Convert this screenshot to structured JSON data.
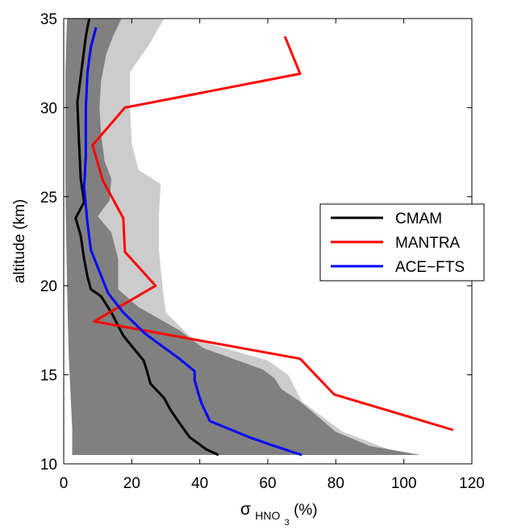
{
  "chart_data": {
    "type": "line",
    "title": "",
    "xlabel": "σ",
    "xlabel_subscript": "HNO",
    "xlabel_subsubscript": "3",
    "xlabel_unit": "(%)",
    "ylabel": "altitude (km)",
    "xlim": [
      0,
      120
    ],
    "ylim": [
      10,
      35
    ],
    "xticks": [
      0,
      20,
      40,
      60,
      80,
      100,
      120
    ],
    "yticks": [
      10,
      15,
      20,
      25,
      30,
      35
    ],
    "grid": false,
    "legend_position": "right",
    "series": [
      {
        "name": "CMAM",
        "color": "#000000",
        "points": [
          [
            45.5,
            10.5
          ],
          [
            42,
            10.8
          ],
          [
            37,
            11.5
          ],
          [
            34,
            12.3
          ],
          [
            31.5,
            13.0
          ],
          [
            29.5,
            13.7
          ],
          [
            25.5,
            14.5
          ],
          [
            24.5,
            15.2
          ],
          [
            23.5,
            15.8
          ],
          [
            20.5,
            16.5
          ],
          [
            17.5,
            17.2
          ],
          [
            14,
            18.5
          ],
          [
            11,
            19.4
          ],
          [
            8,
            19.8
          ],
          [
            7,
            20.5
          ],
          [
            6,
            21.5
          ],
          [
            5,
            22.8
          ],
          [
            3.5,
            23.8
          ],
          [
            6,
            24.7
          ],
          [
            5,
            26.0
          ],
          [
            4.5,
            28.0
          ],
          [
            4,
            30.3
          ],
          [
            5.5,
            32.5
          ],
          [
            6.5,
            34.0
          ],
          [
            7.5,
            35.0
          ]
        ]
      },
      {
        "name": "MANTRA",
        "color": "#ff0000",
        "points": [
          [
            114.5,
            11.9
          ],
          [
            79.5,
            13.9
          ],
          [
            69.5,
            15.9
          ],
          [
            9,
            18.0
          ],
          [
            27,
            20.0
          ],
          [
            18,
            21.9
          ],
          [
            17.5,
            23.8
          ],
          [
            11.5,
            25.9
          ],
          [
            8.5,
            27.9
          ],
          [
            18,
            30.0
          ],
          [
            69.5,
            31.9
          ],
          [
            65,
            34.0
          ]
        ]
      },
      {
        "name": "ACE−FTS",
        "color": "#0000ff",
        "points": [
          [
            70,
            10.5
          ],
          [
            62,
            11.0
          ],
          [
            54.5,
            11.5
          ],
          [
            43,
            12.4
          ],
          [
            40.5,
            13.4
          ],
          [
            39.5,
            14.0
          ],
          [
            38.5,
            14.7
          ],
          [
            38.5,
            15.2
          ],
          [
            34,
            15.9
          ],
          [
            24,
            17.3
          ],
          [
            17.5,
            18.5
          ],
          [
            13,
            19.6
          ],
          [
            10.5,
            20.8
          ],
          [
            8,
            22.0
          ],
          [
            7,
            23.5
          ],
          [
            6,
            25.5
          ],
          [
            6.5,
            27.3
          ],
          [
            6.5,
            30.0
          ],
          [
            7,
            32.0
          ],
          [
            8,
            33.4
          ],
          [
            9.5,
            34.5
          ]
        ]
      }
    ],
    "bands": [
      {
        "fill": "#cccccc",
        "left": [
          [
            2.5,
            10.5
          ],
          [
            2.5,
            12.0
          ],
          [
            2,
            14.0
          ],
          [
            1.5,
            16.0
          ],
          [
            1.2,
            18.0
          ],
          [
            1,
            20.0
          ],
          [
            0.8,
            22.0
          ],
          [
            0.6,
            24.0
          ],
          [
            0.5,
            26.0
          ],
          [
            0.5,
            28.0
          ],
          [
            0.5,
            30.0
          ],
          [
            0.5,
            32.0
          ],
          [
            0.8,
            34.0
          ],
          [
            1,
            35.0
          ]
        ],
        "right": [
          [
            100,
            10.5
          ],
          [
            82,
            11.8
          ],
          [
            70,
            13.5
          ],
          [
            66,
            15.0
          ],
          [
            60,
            15.8
          ],
          [
            38,
            17.0
          ],
          [
            30,
            18.5
          ],
          [
            29,
            20.0
          ],
          [
            28,
            22.0
          ],
          [
            28,
            24.0
          ],
          [
            28.5,
            25.7
          ],
          [
            22,
            26.5
          ],
          [
            20,
            28.0
          ],
          [
            19.5,
            30.0
          ],
          [
            19.5,
            32.0
          ],
          [
            25,
            33.5
          ],
          [
            28,
            34.5
          ],
          [
            29.5,
            35.0
          ]
        ]
      },
      {
        "fill": "#808080",
        "left": [
          [
            2.5,
            10.5
          ],
          [
            2.5,
            12.0
          ],
          [
            2,
            14.0
          ],
          [
            1.5,
            16.0
          ],
          [
            1.2,
            18.0
          ],
          [
            1,
            20.0
          ],
          [
            0.8,
            22.0
          ],
          [
            0.6,
            24.0
          ],
          [
            0.5,
            26.0
          ],
          [
            0.5,
            28.0
          ],
          [
            0.5,
            30.0
          ],
          [
            0.5,
            32.0
          ],
          [
            0.8,
            34.0
          ],
          [
            1,
            35.0
          ]
        ],
        "right": [
          [
            105,
            10.5
          ],
          [
            90,
            11.0
          ],
          [
            80,
            11.8
          ],
          [
            69.5,
            13.5
          ],
          [
            64,
            14.2
          ],
          [
            62,
            14.8
          ],
          [
            58.5,
            15.3
          ],
          [
            41,
            16.5
          ],
          [
            34,
            17.5
          ],
          [
            22,
            18.8
          ],
          [
            16,
            19.8
          ],
          [
            16,
            21.5
          ],
          [
            14,
            23.0
          ],
          [
            10,
            23.9
          ],
          [
            13.5,
            24.8
          ],
          [
            14,
            26.0
          ],
          [
            12,
            27.0
          ],
          [
            11,
            28.5
          ],
          [
            10.5,
            30.0
          ],
          [
            11,
            31.5
          ],
          [
            12.5,
            33.0
          ],
          [
            14.5,
            34.0
          ],
          [
            17,
            35.0
          ]
        ]
      }
    ]
  }
}
